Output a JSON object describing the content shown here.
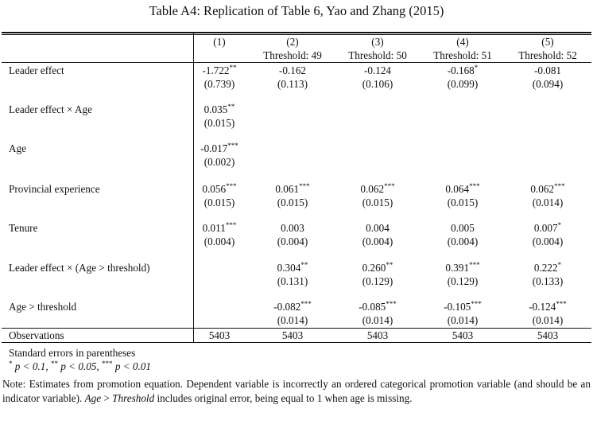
{
  "caption": "Table A4: Replication of Table 6, Yao and Zhang (2015)",
  "columns": [
    {
      "num": "(1)",
      "sub": ""
    },
    {
      "num": "(2)",
      "sub": "Threshold: 49"
    },
    {
      "num": "(3)",
      "sub": "Threshold: 50"
    },
    {
      "num": "(4)",
      "sub": "Threshold: 51"
    },
    {
      "num": "(5)",
      "sub": "Threshold: 52"
    }
  ],
  "rows": [
    {
      "label": "Leader effect",
      "coef": [
        "-1.722",
        "-0.162",
        "-0.124",
        "-0.168",
        "-0.081"
      ],
      "stars": [
        "**",
        "",
        "",
        "*",
        ""
      ],
      "se": [
        "(0.739)",
        "(0.113)",
        "(0.106)",
        "(0.099)",
        "(0.094)"
      ]
    },
    {
      "label": "Leader effect × Age",
      "coef": [
        "0.035",
        "",
        "",
        "",
        ""
      ],
      "stars": [
        "**",
        "",
        "",
        "",
        ""
      ],
      "se": [
        "(0.015)",
        "",
        "",
        "",
        ""
      ]
    },
    {
      "label": "Age",
      "coef": [
        "-0.017",
        "",
        "",
        "",
        ""
      ],
      "stars": [
        "***",
        "",
        "",
        "",
        ""
      ],
      "se": [
        "(0.002)",
        "",
        "",
        "",
        ""
      ]
    },
    {
      "label": "Provincial experience",
      "coef": [
        "0.056",
        "0.061",
        "0.062",
        "0.064",
        "0.062"
      ],
      "stars": [
        "***",
        "***",
        "***",
        "***",
        "***"
      ],
      "se": [
        "(0.015)",
        "(0.015)",
        "(0.015)",
        "(0.015)",
        "(0.014)"
      ]
    },
    {
      "label": "Tenure",
      "coef": [
        "0.011",
        "0.003",
        "0.004",
        "0.005",
        "0.007"
      ],
      "stars": [
        "***",
        "",
        "",
        "",
        "*"
      ],
      "se": [
        "(0.004)",
        "(0.004)",
        "(0.004)",
        "(0.004)",
        "(0.004)"
      ]
    },
    {
      "label": "Leader effect × (Age > threshold)",
      "coef": [
        "",
        "0.304",
        "0.260",
        "0.391",
        "0.222"
      ],
      "stars": [
        "",
        "**",
        "**",
        "***",
        "*"
      ],
      "se": [
        "",
        "(0.131)",
        "(0.129)",
        "(0.129)",
        "(0.133)"
      ]
    },
    {
      "label": "Age > threshold",
      "coef": [
        "",
        "-0.082",
        "-0.085",
        "-0.105",
        "-0.124"
      ],
      "stars": [
        "",
        "***",
        "***",
        "***",
        "***"
      ],
      "se": [
        "",
        "(0.014)",
        "(0.014)",
        "(0.014)",
        "(0.014)"
      ]
    }
  ],
  "observations": {
    "label": "Observations",
    "values": [
      "5403",
      "5403",
      "5403",
      "5403",
      "5403"
    ]
  },
  "footnotes": {
    "se_note": "Standard errors in parentheses",
    "p1": "p < 0.1,",
    "p2": "p < 0.05,",
    "p3": "p < 0.01"
  },
  "note": {
    "part1": "Note: Estimates from promotion equation. Dependent variable is incorrectly an ordered categorical promotion variable (and should be an indicator variable).",
    "age_it": "Age",
    "gt": " > ",
    "threshold_it": "Threshold",
    "part2": " includes original error, being equal to 1 when age is missing."
  }
}
